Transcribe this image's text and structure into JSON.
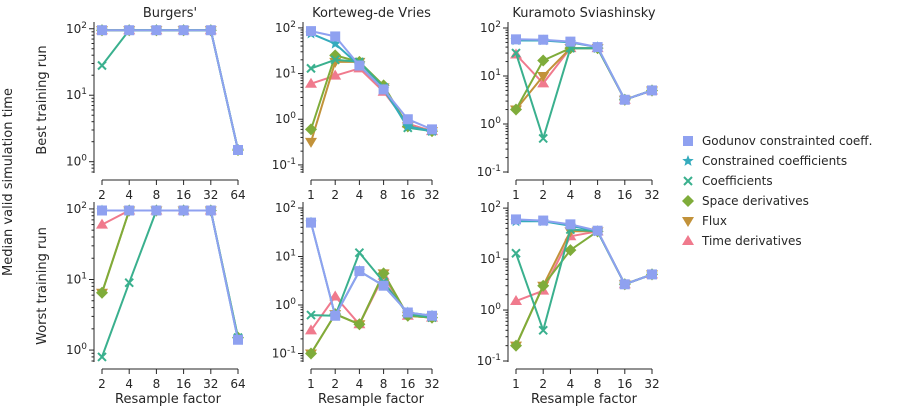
{
  "figure": {
    "ylabel": "Median valid simulation time",
    "row_labels": [
      "Best training run",
      "Worst training run"
    ],
    "xlabel": "Resample factor",
    "column_titles": [
      "Burgers'",
      "Korteweg-de Vries",
      "Kuramoto Sviashinsky"
    ]
  },
  "series_styles": [
    {
      "name": "Godunov constrainted coeff.",
      "color": "#8fa1f0",
      "marker": "square"
    },
    {
      "name": "Constrained coefficients",
      "color": "#35abbd",
      "marker": "star"
    },
    {
      "name": "Coefficients",
      "color": "#3ab08e",
      "marker": "x"
    },
    {
      "name": "Space derivatives",
      "color": "#7fac3a",
      "marker": "diamond"
    },
    {
      "name": "Flux",
      "color": "#c2923a",
      "marker": "triangle-down"
    },
    {
      "name": "Time derivatives",
      "color": "#f07a8d",
      "marker": "triangle-up"
    }
  ],
  "legend": {
    "placement": "right"
  },
  "chart_data": [
    {
      "type": "line",
      "id": "burgers-best",
      "row": 0,
      "col": 0,
      "title": "Burgers'",
      "x": [
        2,
        4,
        8,
        16,
        32,
        64
      ],
      "yscale": "log",
      "ylim": [
        0.7,
        110
      ],
      "yticks": [
        1,
        10,
        100
      ],
      "ytick_labels": [
        "10^0",
        "10^1",
        "10^2"
      ],
      "series": [
        {
          "style": 5,
          "values": [
            95,
            95,
            95,
            95,
            95,
            null
          ]
        },
        {
          "style": 4,
          "values": [
            95,
            95,
            95,
            95,
            95,
            null
          ]
        },
        {
          "style": 3,
          "values": [
            95,
            95,
            95,
            95,
            95,
            1.5
          ]
        },
        {
          "style": 2,
          "values": [
            28,
            95,
            95,
            95,
            95,
            1.5
          ]
        },
        {
          "style": 1,
          "values": [
            95,
            95,
            95,
            95,
            95,
            1.5
          ]
        },
        {
          "style": 0,
          "values": [
            95,
            95,
            95,
            95,
            95,
            1.5
          ]
        }
      ]
    },
    {
      "type": "line",
      "id": "kdv-best",
      "row": 0,
      "col": 1,
      "title": "Korteweg-de Vries",
      "x": [
        1,
        2,
        4,
        8,
        16,
        32
      ],
      "yscale": "log",
      "ylim": [
        0.07,
        110
      ],
      "yticks": [
        0.1,
        1,
        10,
        100
      ],
      "ytick_labels": [
        "10^-1",
        "10^0",
        "10^1",
        "10^2"
      ],
      "series": [
        {
          "style": 5,
          "values": [
            6,
            9,
            13,
            4,
            0.8,
            0.55
          ]
        },
        {
          "style": 4,
          "values": [
            0.32,
            18,
            18,
            5,
            0.7,
            0.55
          ]
        },
        {
          "style": 3,
          "values": [
            0.6,
            25,
            18,
            5.5,
            0.7,
            0.55
          ]
        },
        {
          "style": 2,
          "values": [
            13,
            20,
            18,
            5,
            0.65,
            0.55
          ]
        },
        {
          "style": 1,
          "values": [
            75,
            45,
            15,
            4.5,
            0.7,
            0.55
          ]
        },
        {
          "style": 0,
          "values": [
            85,
            65,
            15,
            4.5,
            1.0,
            0.6
          ]
        }
      ]
    },
    {
      "type": "line",
      "id": "ks-best",
      "row": 0,
      "col": 2,
      "title": "Kuramoto Sviashinsky",
      "x": [
        1,
        2,
        4,
        8,
        16,
        32
      ],
      "yscale": "log",
      "ylim": [
        0.1,
        110
      ],
      "yticks": [
        0.1,
        1,
        10,
        100
      ],
      "ytick_labels": [
        "10^-1",
        "10^0",
        "10^1",
        "10^2"
      ],
      "series": [
        {
          "style": 5,
          "values": [
            28,
            7,
            38,
            38,
            3.2,
            5
          ]
        },
        {
          "style": 4,
          "values": [
            2,
            10,
            38,
            38,
            3.2,
            5
          ]
        },
        {
          "style": 3,
          "values": [
            2,
            21,
            38,
            38,
            3.2,
            5
          ]
        },
        {
          "style": 2,
          "values": [
            30,
            0.5,
            38,
            38,
            3.2,
            5
          ]
        },
        {
          "style": 1,
          "values": [
            55,
            55,
            50,
            40,
            3.2,
            5
          ]
        },
        {
          "style": 0,
          "values": [
            58,
            57,
            52,
            40,
            3.2,
            5
          ]
        }
      ]
    },
    {
      "type": "line",
      "id": "burgers-worst",
      "row": 1,
      "col": 0,
      "x": [
        2,
        4,
        8,
        16,
        32,
        64
      ],
      "yscale": "log",
      "ylim": [
        0.7,
        110
      ],
      "yticks": [
        1,
        10,
        100
      ],
      "ytick_labels": [
        "10^0",
        "10^1",
        "10^2"
      ],
      "series": [
        {
          "style": 5,
          "values": [
            60,
            95,
            95,
            95,
            95,
            null
          ]
        },
        {
          "style": 4,
          "values": [
            6.5,
            95,
            95,
            95,
            95,
            null
          ]
        },
        {
          "style": 3,
          "values": [
            6.5,
            95,
            95,
            95,
            95,
            1.5
          ]
        },
        {
          "style": 2,
          "values": [
            0.8,
            9,
            95,
            95,
            95,
            1.5
          ]
        },
        {
          "style": 1,
          "values": [
            95,
            95,
            95,
            95,
            95,
            1.4
          ]
        },
        {
          "style": 0,
          "values": [
            95,
            95,
            95,
            95,
            95,
            1.4
          ]
        }
      ]
    },
    {
      "type": "line",
      "id": "kdv-worst",
      "row": 1,
      "col": 1,
      "x": [
        1,
        2,
        4,
        8,
        16,
        32
      ],
      "yscale": "log",
      "ylim": [
        0.07,
        110
      ],
      "yticks": [
        0.1,
        1,
        10,
        100
      ],
      "ytick_labels": [
        "10^-1",
        "10^0",
        "10^1",
        "10^2"
      ],
      "series": [
        {
          "style": 5,
          "values": [
            0.3,
            1.5,
            0.4,
            4,
            0.6,
            0.55
          ]
        },
        {
          "style": 4,
          "values": [
            0.1,
            0.65,
            0.4,
            4.5,
            0.6,
            0.55
          ]
        },
        {
          "style": 3,
          "values": [
            0.1,
            0.65,
            0.4,
            4.5,
            0.6,
            0.55
          ]
        },
        {
          "style": 2,
          "values": [
            0.62,
            0.6,
            12,
            3,
            0.65,
            0.55
          ]
        },
        {
          "style": 1,
          "values": [
            50,
            0.6,
            5,
            2.5,
            0.7,
            0.6
          ]
        },
        {
          "style": 0,
          "values": [
            50,
            0.6,
            5,
            2.5,
            0.7,
            0.6
          ]
        }
      ]
    },
    {
      "type": "line",
      "id": "ks-worst",
      "row": 1,
      "col": 2,
      "x": [
        1,
        2,
        4,
        8,
        16,
        32
      ],
      "yscale": "log",
      "ylim": [
        0.1,
        110
      ],
      "yticks": [
        0.1,
        1,
        10,
        100
      ],
      "ytick_labels": [
        "10^-1",
        "10^0",
        "10^1",
        "10^2"
      ],
      "series": [
        {
          "style": 5,
          "values": [
            1.5,
            2.4,
            28,
            35,
            3.2,
            5
          ]
        },
        {
          "style": 4,
          "values": [
            0.2,
            3,
            35,
            35,
            3.2,
            5
          ]
        },
        {
          "style": 3,
          "values": [
            0.2,
            3,
            15,
            35,
            3.2,
            5
          ]
        },
        {
          "style": 2,
          "values": [
            13,
            0.4,
            38,
            35,
            3.2,
            5
          ]
        },
        {
          "style": 1,
          "values": [
            55,
            55,
            45,
            35,
            3.2,
            5
          ]
        },
        {
          "style": 0,
          "values": [
            60,
            57,
            48,
            36,
            3.2,
            5
          ]
        }
      ]
    }
  ]
}
